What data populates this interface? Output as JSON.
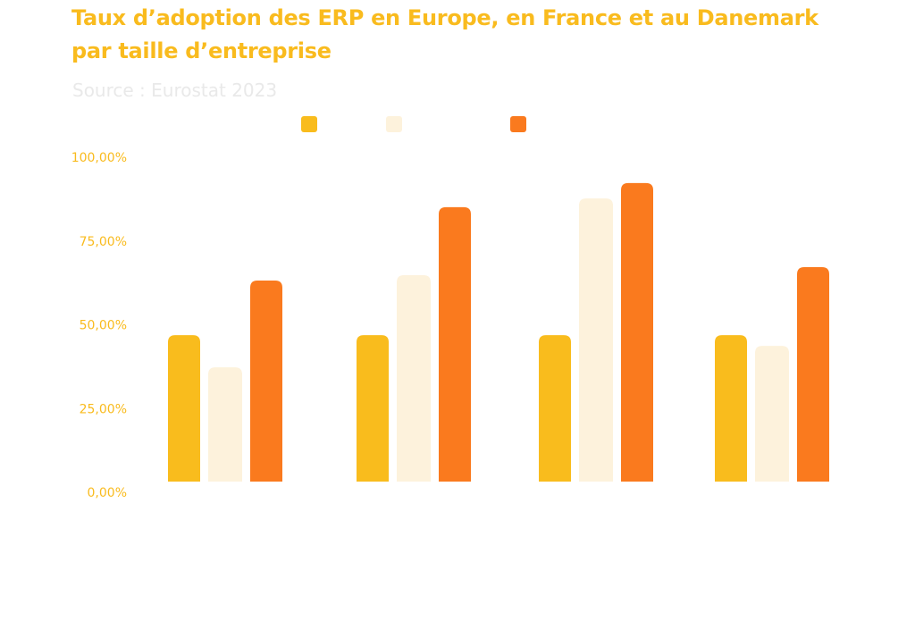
{
  "colors": {
    "title": "#F9BB1E",
    "source": "#E9E9E9",
    "axis_label": "#F9BB1E",
    "series": [
      "#F9BC1D",
      "#FDF2DC",
      "#FA7A1E"
    ]
  },
  "chart_data": {
    "type": "bar",
    "title": "Taux d’adoption des ERP en Europe, en France et au Danemark par taille d’entreprise",
    "subtitle": "Source : Eurostat 2023",
    "xlabel": "",
    "ylabel": "",
    "ylim": [
      0,
      100
    ],
    "yticks": [
      0,
      25,
      50,
      75,
      100
    ],
    "ytick_labels": [
      "0,00%",
      "25,00%",
      "50,00%",
      "75,00%",
      "100,00%"
    ],
    "grid": false,
    "legend": {
      "placement": "top-center",
      "entries": [
        "",
        "",
        ""
      ]
    },
    "categories": [
      "",
      "",
      "",
      ""
    ],
    "series": [
      {
        "name": "",
        "values": [
          43.7,
          43.7,
          43.7,
          43.7
        ]
      },
      {
        "name": "",
        "values": [
          34.1,
          61.6,
          84.5,
          40.5
        ]
      },
      {
        "name": "",
        "values": [
          60.0,
          81.9,
          89.1,
          64.0
        ]
      }
    ]
  }
}
